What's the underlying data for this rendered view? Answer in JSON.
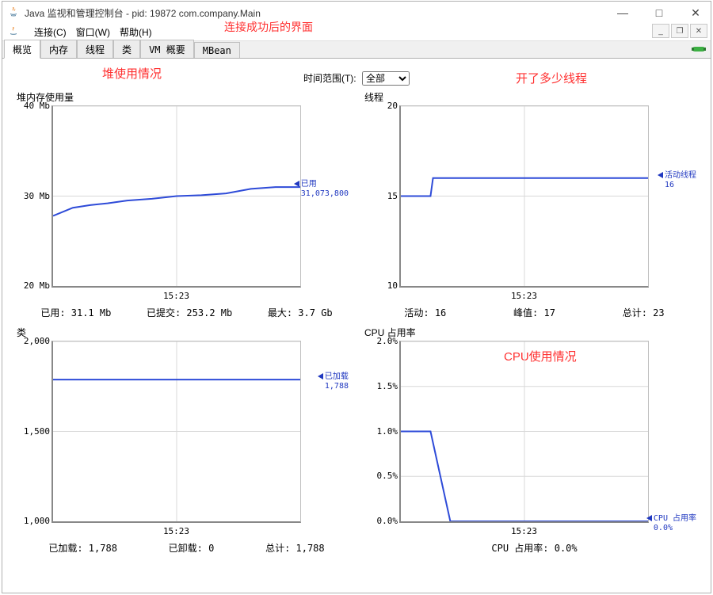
{
  "window": {
    "title": "Java 监视和管理控制台 - pid: 19872 com.company.Main",
    "annot_connected": "连接成功后的界面"
  },
  "menu": {
    "connect": "连接(C)",
    "window": "窗口(W)",
    "help": "帮助(H)"
  },
  "tabs": [
    "概览",
    "内存",
    "线程",
    "类",
    "VM 概要",
    "MBean"
  ],
  "time": {
    "label": "时间范围(T):",
    "value": "全部"
  },
  "annot": {
    "heap": "堆使用情况",
    "threads": "开了多少线程",
    "cpu": "CPU使用情况"
  },
  "heap": {
    "title": "堆内存使用量",
    "ylim": [
      20,
      40
    ],
    "yticks": [
      20,
      30,
      40
    ],
    "yunit": "Mb",
    "xlabel": "15:23",
    "points": [
      [
        0.0,
        27.8
      ],
      [
        0.08,
        28.7
      ],
      [
        0.15,
        29.0
      ],
      [
        0.22,
        29.2
      ],
      [
        0.3,
        29.5
      ],
      [
        0.4,
        29.7
      ],
      [
        0.5,
        30.0
      ],
      [
        0.6,
        30.1
      ],
      [
        0.7,
        30.3
      ],
      [
        0.8,
        30.8
      ],
      [
        0.9,
        31.0
      ],
      [
        1.0,
        31.0
      ]
    ],
    "legend_label": "已用",
    "legend_value": "31,073,800",
    "summary": {
      "used": "已用:  31.1  Mb",
      "committed": "已提交:  253.2  Mb",
      "max": "最大:  3.7  Gb"
    }
  },
  "threads": {
    "title": "线程",
    "ylim": [
      10,
      20
    ],
    "yticks": [
      10,
      15,
      20
    ],
    "xlabel": "15:23",
    "points": [
      [
        0.0,
        15
      ],
      [
        0.12,
        15
      ],
      [
        0.13,
        16
      ],
      [
        1.0,
        16
      ]
    ],
    "legend_label": "活动线程",
    "legend_value": "16",
    "summary": {
      "live": "活动:  16",
      "peak": "峰值:  17",
      "total": "总计:  23"
    }
  },
  "classes": {
    "title": "类",
    "ylim": [
      1000,
      2000
    ],
    "yticks": [
      1000,
      1500,
      2000
    ],
    "xlabel": "15:23",
    "points": [
      [
        0.0,
        1788
      ],
      [
        1.0,
        1788
      ]
    ],
    "legend_label": "已加载",
    "legend_value": "1,788",
    "summary": {
      "loaded": "已加载:  1,788",
      "unloaded": "已卸载:  0",
      "total": "总计:  1,788"
    }
  },
  "cpu": {
    "title": "CPU 占用率",
    "ylim": [
      0,
      2.0
    ],
    "yticks": [
      0,
      0.5,
      1.0,
      1.5,
      2.0
    ],
    "yfmt": "pct",
    "xlabel": "15:23",
    "points": [
      [
        0.0,
        1.0
      ],
      [
        0.12,
        1.0
      ],
      [
        0.2,
        0.0
      ],
      [
        1.0,
        0.0
      ]
    ],
    "legend_label": "CPU 占用率",
    "legend_value": "0.0%",
    "summary": {
      "line": "CPU 占用率: 0.0%"
    }
  },
  "colors": {
    "line": "#2e4bd8",
    "grid": "#d8d8d8",
    "red": "#ff3030"
  }
}
